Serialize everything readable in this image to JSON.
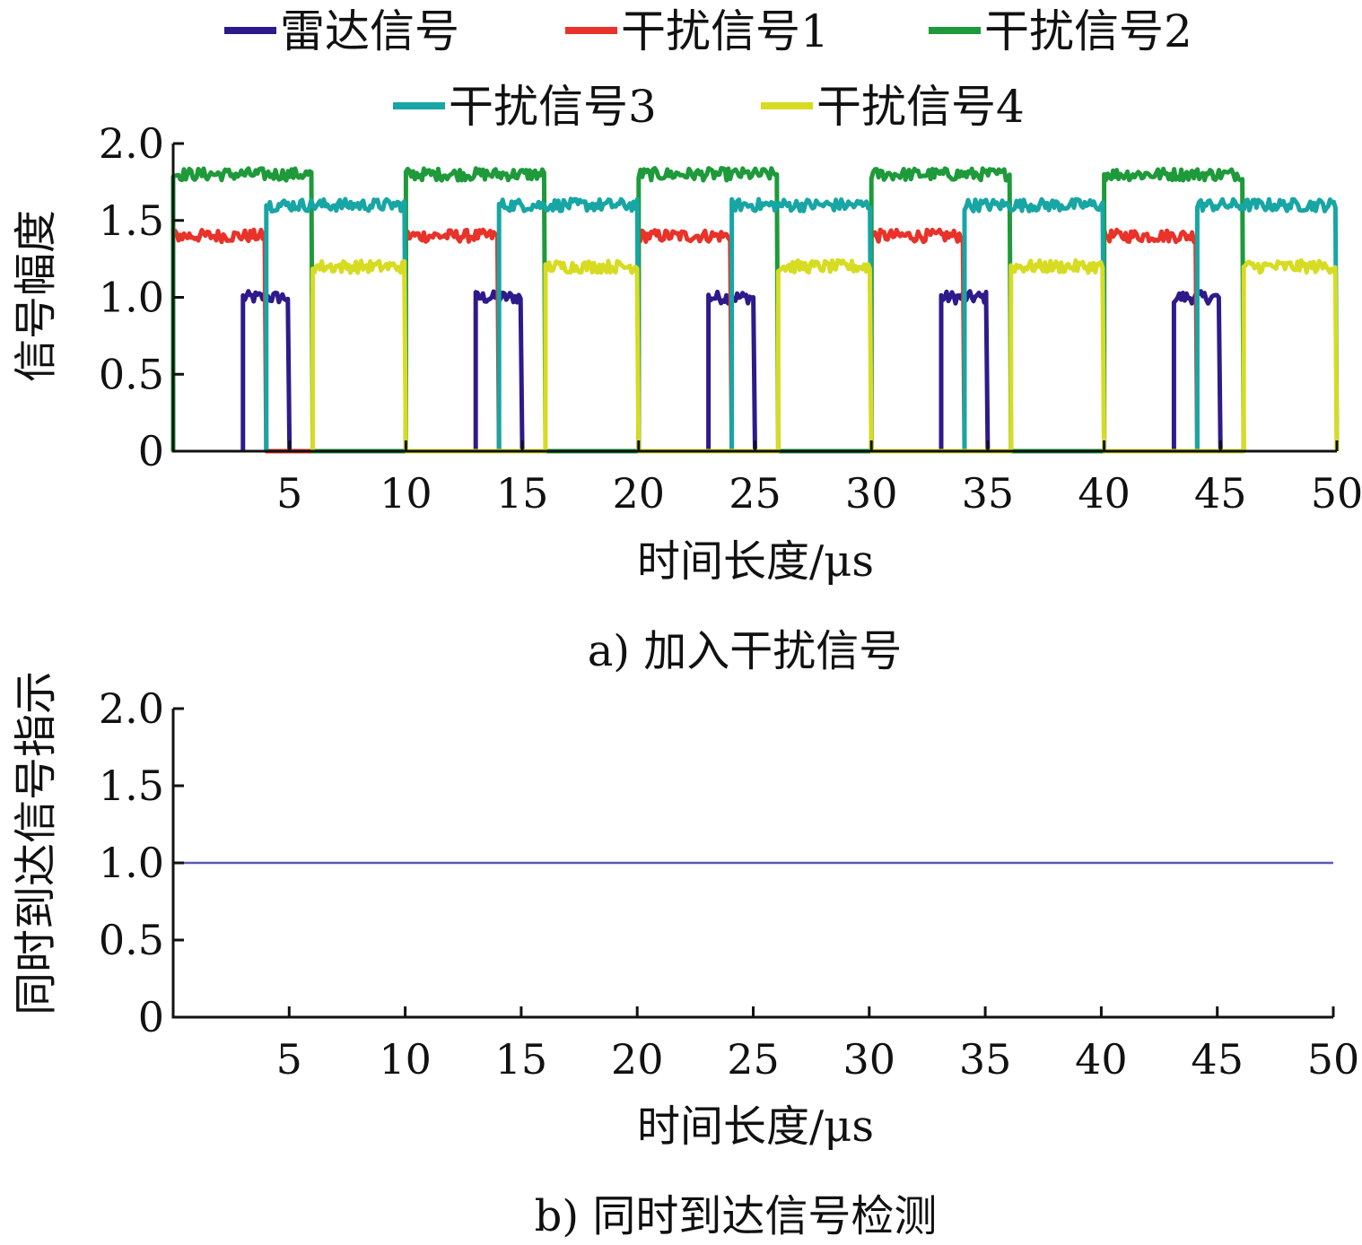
{
  "chart_data": [
    {
      "id": "a",
      "type": "line",
      "caption": "a) 加入干扰信号",
      "xlabel": "时间长度/μs",
      "ylabel": "信号幅度",
      "xlim": [
        0,
        50
      ],
      "ylim": [
        0,
        2.0
      ],
      "xticks": [
        "5",
        "10",
        "15",
        "20",
        "25",
        "30",
        "35",
        "40",
        "45",
        "50"
      ],
      "yticks": [
        "0",
        "0.5",
        "1.0",
        "1.5",
        "2.0"
      ],
      "legend_position": "top",
      "period": 10,
      "series": [
        {
          "name": "雷达信号",
          "color": "#2e1a8a",
          "amplitude": 1.0,
          "pulses": [
            [
              3,
              5
            ]
          ]
        },
        {
          "name": "干扰信号1",
          "color": "#e8322a",
          "amplitude": 1.4,
          "pulses": [
            [
              0,
              4
            ]
          ]
        },
        {
          "name": "干扰信号2",
          "color": "#1e9a3a",
          "amplitude": 1.8,
          "pulses": [
            [
              0,
              6
            ]
          ]
        },
        {
          "name": "干扰信号3",
          "color": "#17a6a4",
          "amplitude": 1.6,
          "pulses": [
            [
              4,
              10
            ]
          ]
        },
        {
          "name": "干扰信号4",
          "color": "#d7dc22",
          "amplitude": 1.2,
          "pulses": [
            [
              6,
              10
            ]
          ]
        }
      ]
    },
    {
      "id": "b",
      "type": "line",
      "caption": "b) 同时到达信号检测",
      "xlabel": "时间长度/μs",
      "ylabel": "同时到达信号指示",
      "xlim": [
        0,
        50
      ],
      "ylim": [
        0,
        2.0
      ],
      "xticks": [
        "5",
        "10",
        "15",
        "20",
        "25",
        "30",
        "35",
        "40",
        "45",
        "50"
      ],
      "yticks": [
        "0",
        "0.5",
        "1.0",
        "1.5",
        "2.0"
      ],
      "series": [
        {
          "color": "#5a5ab4",
          "x": [
            0,
            50
          ],
          "y": [
            1.0,
            1.0
          ]
        }
      ]
    }
  ]
}
